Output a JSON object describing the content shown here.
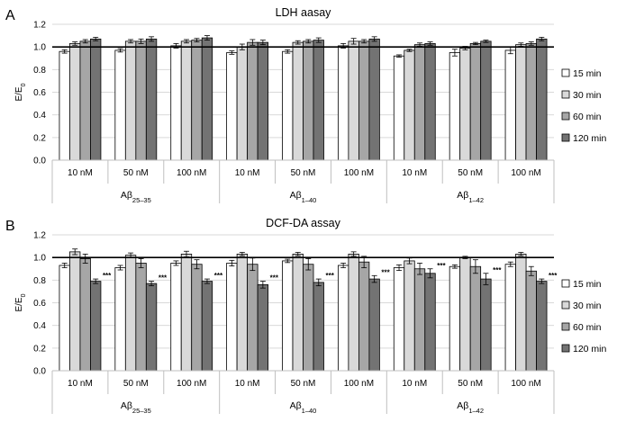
{
  "figure": {
    "panels": [
      {
        "label": "A"
      },
      {
        "label": "B"
      }
    ]
  },
  "chart_data": [
    {
      "type": "bar",
      "panel": "A",
      "title": "LDH aasay",
      "ylabel": "E/E0",
      "ylabel_main": "E/E",
      "ylabel_sub": "0",
      "ylim": [
        0,
        1.2
      ],
      "yticks": [
        "0.0",
        "0.2",
        "0.4",
        "0.6",
        "0.8",
        "1.0",
        "1.2"
      ],
      "reference_line": 1.0,
      "grid": true,
      "legend_position": "right",
      "categories": [
        "10 nM",
        "50 nM",
        "100 nM",
        "10 nM",
        "50 nM",
        "100 nM",
        "10 nM",
        "50 nM",
        "100 nM"
      ],
      "groups": [
        {
          "main": "Aβ",
          "sub": "25–35",
          "span": [
            0,
            2
          ]
        },
        {
          "main": "Aβ",
          "sub": "1–40",
          "span": [
            3,
            5
          ]
        },
        {
          "main": "Aβ",
          "sub": "1–42",
          "span": [
            6,
            8
          ]
        }
      ],
      "series": [
        {
          "name": "15 min",
          "color": "#ffffff",
          "values": [
            0.96,
            0.97,
            1.01,
            0.95,
            0.96,
            1.01,
            0.92,
            0.95,
            0.97
          ],
          "errors": [
            0.015,
            0.015,
            0.02,
            0.015,
            0.015,
            0.02,
            0.01,
            0.03,
            0.03
          ],
          "significance": [
            "",
            "",
            "",
            "",
            "",
            "",
            "",
            "",
            ""
          ]
        },
        {
          "name": "30 min",
          "color": "#d9d9d9",
          "values": [
            1.03,
            1.05,
            1.05,
            1.0,
            1.04,
            1.05,
            0.97,
            0.99,
            1.02
          ],
          "errors": [
            0.015,
            0.015,
            0.015,
            0.025,
            0.015,
            0.025,
            0.01,
            0.015,
            0.015
          ],
          "significance": [
            "",
            "",
            "",
            "",
            "",
            "",
            "",
            "",
            ""
          ]
        },
        {
          "name": "60 min",
          "color": "#a6a6a6",
          "values": [
            1.05,
            1.05,
            1.06,
            1.04,
            1.05,
            1.05,
            1.02,
            1.03,
            1.03
          ],
          "errors": [
            0.015,
            0.02,
            0.015,
            0.025,
            0.015,
            0.015,
            0.015,
            0.01,
            0.015
          ],
          "significance": [
            "",
            "",
            "",
            "",
            "",
            "",
            "",
            "",
            ""
          ]
        },
        {
          "name": "120 min",
          "color": "#737373",
          "values": [
            1.07,
            1.07,
            1.08,
            1.04,
            1.06,
            1.07,
            1.03,
            1.05,
            1.07
          ],
          "errors": [
            0.015,
            0.02,
            0.02,
            0.02,
            0.02,
            0.02,
            0.015,
            0.01,
            0.015
          ],
          "significance": [
            "",
            "",
            "",
            "",
            "",
            "",
            "",
            "",
            ""
          ]
        }
      ]
    },
    {
      "type": "bar",
      "panel": "B",
      "title": "DCF-DA assay",
      "ylabel": "E/E0",
      "ylabel_main": "E/E",
      "ylabel_sub": "0",
      "ylim": [
        0,
        1.2
      ],
      "yticks": [
        "0.0",
        "0.2",
        "0.4",
        "0.6",
        "0.8",
        "1.0",
        "1.2"
      ],
      "reference_line": 1.0,
      "grid": true,
      "legend_position": "right",
      "categories": [
        "10 nM",
        "50 nM",
        "100 nM",
        "10 nM",
        "50 nM",
        "100 nM",
        "10 nM",
        "50 nM",
        "100 nM"
      ],
      "groups": [
        {
          "main": "Aβ",
          "sub": "25–35",
          "span": [
            0,
            2
          ]
        },
        {
          "main": "Aβ",
          "sub": "1–40",
          "span": [
            3,
            5
          ]
        },
        {
          "main": "Aβ",
          "sub": "1–42",
          "span": [
            6,
            8
          ]
        }
      ],
      "series": [
        {
          "name": "15 min",
          "color": "#ffffff",
          "values": [
            0.93,
            0.91,
            0.95,
            0.95,
            0.97,
            0.93,
            0.91,
            0.92,
            0.94
          ],
          "errors": [
            0.02,
            0.02,
            0.02,
            0.025,
            0.015,
            0.02,
            0.025,
            0.015,
            0.02
          ],
          "significance": [
            "",
            "",
            "",
            "",
            "",
            "",
            "",
            "",
            ""
          ]
        },
        {
          "name": "30 min",
          "color": "#d9d9d9",
          "values": [
            1.05,
            1.02,
            1.03,
            1.03,
            1.03,
            1.03,
            0.97,
            1.0,
            1.03
          ],
          "errors": [
            0.025,
            0.02,
            0.025,
            0.015,
            0.015,
            0.02,
            0.025,
            0.01,
            0.015
          ],
          "significance": [
            "",
            "",
            "",
            "",
            "",
            "",
            "",
            "",
            ""
          ]
        },
        {
          "name": "60 min",
          "color": "#a6a6a6",
          "values": [
            0.99,
            0.95,
            0.94,
            0.94,
            0.94,
            0.96,
            0.9,
            0.92,
            0.88
          ],
          "errors": [
            0.04,
            0.04,
            0.04,
            0.055,
            0.05,
            0.05,
            0.05,
            0.06,
            0.04
          ],
          "significance": [
            "",
            "",
            "",
            "",
            "",
            "",
            "",
            "",
            ""
          ]
        },
        {
          "name": "120 min",
          "color": "#737373",
          "values": [
            0.79,
            0.77,
            0.79,
            0.76,
            0.78,
            0.81,
            0.86,
            0.81,
            0.79
          ],
          "errors": [
            0.02,
            0.02,
            0.02,
            0.03,
            0.03,
            0.03,
            0.04,
            0.05,
            0.02
          ],
          "significance": [
            "***",
            "***",
            "***",
            "***",
            "***",
            "***",
            "***",
            "***",
            "***"
          ]
        }
      ]
    }
  ]
}
